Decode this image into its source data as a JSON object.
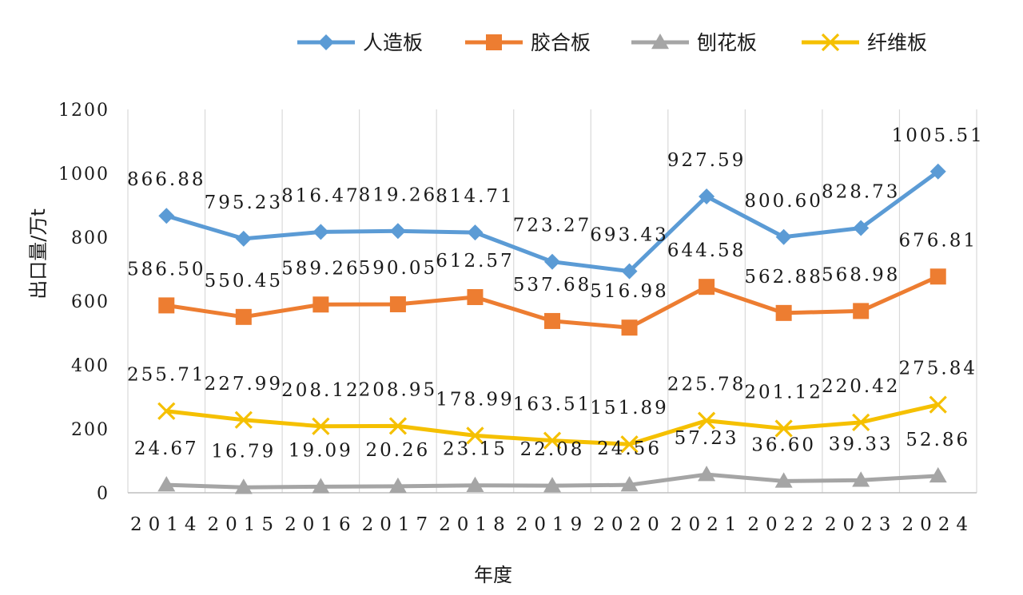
{
  "chart_data": {
    "type": "line",
    "xlabel": "年度",
    "ylabel": "出口量/万t",
    "ylim": [
      0,
      1200
    ],
    "yticks": [
      0,
      200,
      400,
      600,
      800,
      1000,
      1200
    ],
    "grid": "vertical",
    "legend_position": "top",
    "categories": [
      "2014",
      "2015",
      "2016",
      "2017",
      "2018",
      "2019",
      "2020",
      "2021",
      "2022",
      "2023",
      "2024"
    ],
    "series": [
      {
        "name": "人造板",
        "color": "#5b9bd5",
        "marker": "diamond",
        "values": [
          866.88,
          795.23,
          816.47,
          819.26,
          814.71,
          723.27,
          693.43,
          927.59,
          800.6,
          828.73,
          1005.51
        ],
        "labels": [
          "866.88",
          "795.23",
          "816.47",
          "819.26",
          "814.71",
          "723.27",
          "693.43",
          "927.59",
          "800.60",
          "828.73",
          "1005.51"
        ]
      },
      {
        "name": "胶合板",
        "color": "#ed7d31",
        "marker": "square",
        "values": [
          586.5,
          550.45,
          589.26,
          590.05,
          612.57,
          537.68,
          516.98,
          644.58,
          562.88,
          568.98,
          676.81
        ],
        "labels": [
          "586.50",
          "550.45",
          "589.26",
          "590.05",
          "612.57",
          "537.68",
          "516.98",
          "644.58",
          "562.88",
          "568.98",
          "676.81"
        ]
      },
      {
        "name": "刨花板",
        "color": "#a5a5a5",
        "marker": "triangle",
        "values": [
          24.67,
          16.79,
          19.09,
          20.26,
          23.15,
          22.08,
          24.56,
          57.23,
          36.6,
          39.33,
          52.86
        ],
        "labels": [
          "24.67",
          "16.79",
          "19.09",
          "20.26",
          "23.15",
          "22.08",
          "24.56",
          "57.23",
          "36.60",
          "39.33",
          "52.86"
        ]
      },
      {
        "name": "纤维板",
        "color": "#f5c000",
        "marker": "x",
        "values": [
          255.71,
          227.99,
          208.12,
          208.95,
          178.99,
          163.51,
          151.89,
          225.78,
          201.12,
          220.42,
          275.84
        ],
        "labels": [
          "255.71",
          "227.99",
          "208.12",
          "208.95",
          "178.99",
          "163.51",
          "151.89",
          "225.78",
          "201.12",
          "220.42",
          "275.84"
        ]
      }
    ]
  }
}
